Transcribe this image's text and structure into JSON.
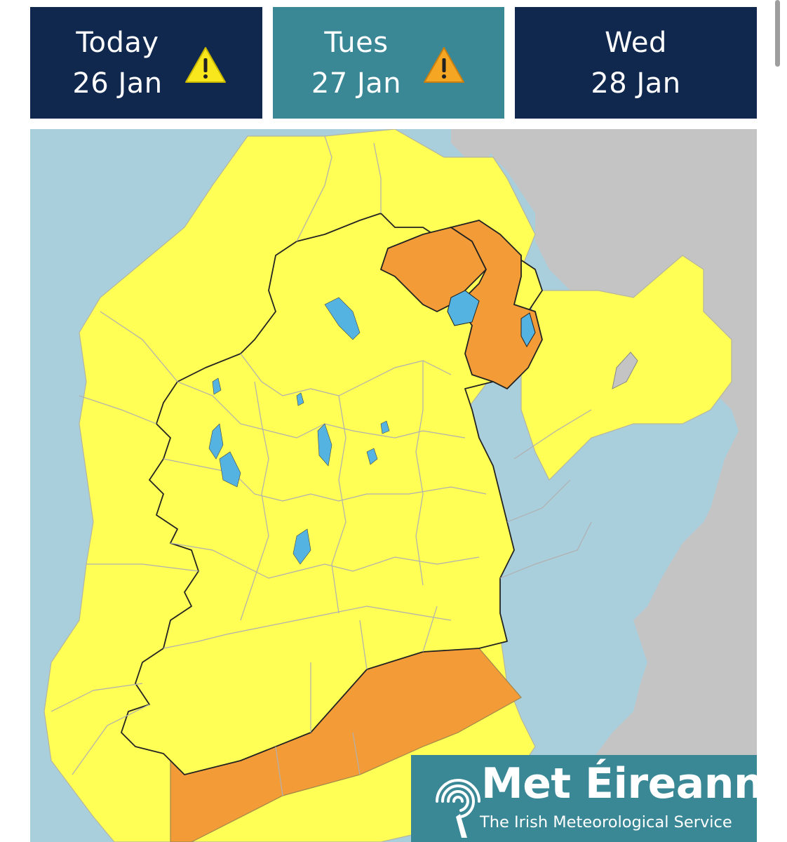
{
  "tabs": [
    {
      "day": "Today",
      "date": "26 Jan",
      "warning_icon": "warning-triangle-yellow",
      "warning_color": "#f8e71c"
    },
    {
      "day": "Tues",
      "date": "27 Jan",
      "warning_icon": "warning-triangle-orange",
      "warning_color": "#f5a623"
    },
    {
      "day": "Wed",
      "date": "28 Jan"
    }
  ],
  "colors": {
    "tab_background": "#11284e",
    "tab_selected_background": "#3a8896",
    "sea": "#a9cfdc",
    "land_other": "#c4c4c4",
    "yellow_warning": "#ffff55",
    "orange_warning": "#f39c37",
    "lakes": "#55b3e2"
  },
  "map": {
    "selected_day": "Tues 27 Jan",
    "legend_levels": [
      "yellow",
      "orange"
    ],
    "orange_regions": [
      "Derry-Tyrone area (NI)",
      "Antrim-Down area (NI)",
      "South coast sea areas"
    ],
    "yellow_regions": "All other counties and marine areas"
  },
  "logo": {
    "name": "Met Éireann",
    "subtitle": "The Irish Meteorological Service",
    "icon": "swirl-logo-icon"
  }
}
